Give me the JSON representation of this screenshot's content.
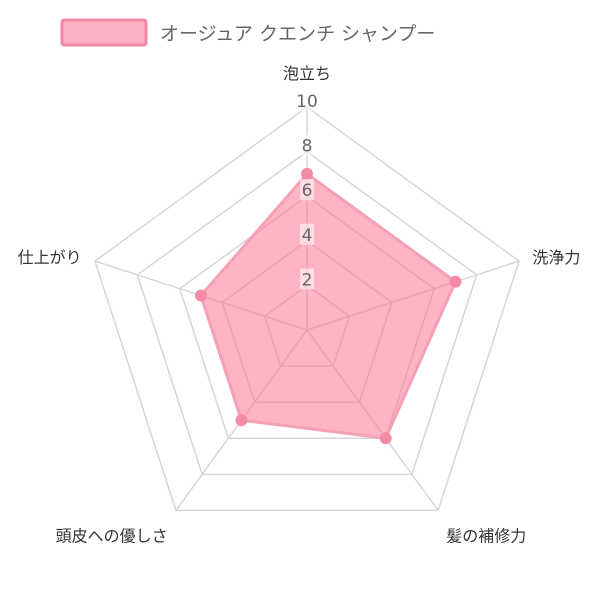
{
  "chart_data": {
    "type": "radar",
    "legend": [
      "オージュア クエンチ シャンプー"
    ],
    "legend_placement": "top",
    "axes": [
      "泡立ち",
      "洗浄力",
      "髪の補修力",
      "頭皮への優しさ",
      "仕上がり"
    ],
    "scale": {
      "min": 0,
      "max": 10,
      "ticks": [
        2,
        4,
        6,
        8,
        10
      ]
    },
    "series": [
      {
        "name": "オージュア クエンチ シャンプー",
        "values": [
          7,
          7,
          6,
          5,
          5
        ]
      }
    ],
    "colors": {
      "fill": "rgba(255,118,152,0.55)",
      "stroke": "#f5a0b4",
      "point": "#f48aa6",
      "legend_fill": "#fbb1c3",
      "legend_stroke": "#f28aa5",
      "grid": "#d6d6d6"
    }
  }
}
